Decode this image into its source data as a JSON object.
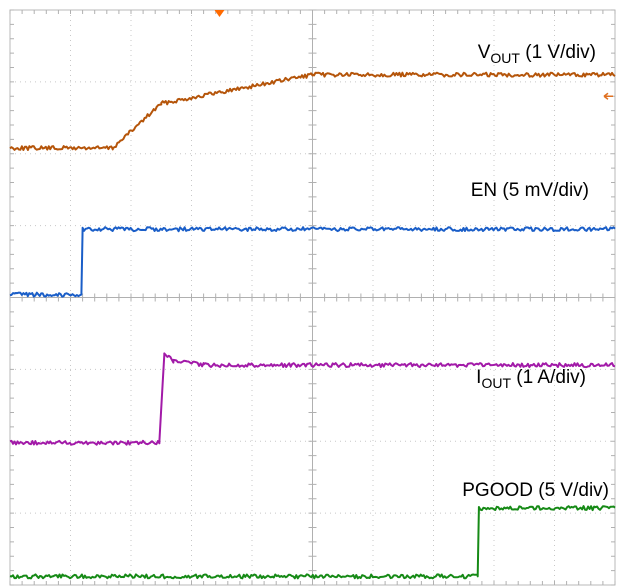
{
  "chart_data": {
    "type": "line",
    "grid": true,
    "divisions": {
      "x": 10,
      "y": 8
    },
    "trigger_marker_color": "#ff6a00",
    "level_marker_color": "#e07020",
    "series": [
      {
        "name": "VOUT (1 V/div)",
        "label_main": "V",
        "label_sub": "OUT",
        "label_rest": " (1 V/div)",
        "color": "#b5550a",
        "x": [
          0,
          1.7,
          2.5,
          5.0,
          10
        ],
        "y": [
          6.08,
          6.08,
          6.7,
          7.1,
          7.1
        ]
      },
      {
        "name": "EN (5 mV/div)",
        "label_main": "EN (5 mV/div)",
        "label_sub": "",
        "label_rest": "",
        "color": "#1a5ec8",
        "x": [
          0,
          1.18,
          1.2,
          10
        ],
        "y": [
          4.04,
          4.04,
          4.95,
          4.95
        ]
      },
      {
        "name": "IOUT (1 A/div)",
        "label_main": "I",
        "label_sub": "OUT",
        "label_rest": " (1 A/div)",
        "color": "#a21aa8",
        "x": [
          0,
          2.47,
          2.55,
          2.7,
          3.2,
          10
        ],
        "y": [
          1.98,
          1.98,
          3.22,
          3.12,
          3.06,
          3.06
        ]
      },
      {
        "name": "PGOOD (5 V/div)",
        "label_main": "PGOOD (5 V/div)",
        "label_sub": "",
        "label_rest": "",
        "color": "#168a16",
        "x": [
          0,
          7.73,
          7.75,
          10
        ],
        "y": [
          0.12,
          0.12,
          1.07,
          1.07
        ]
      }
    ]
  }
}
